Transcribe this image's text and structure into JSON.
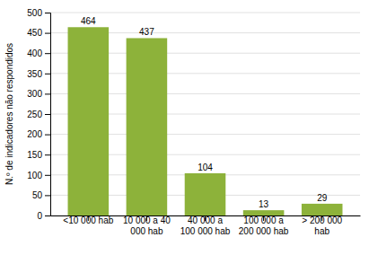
{
  "chart_data": {
    "type": "bar",
    "categories": [
      "<10 000 hab",
      "10 000 a 40\n000 hab",
      "40 000 a\n100 000 hab",
      "100 000 a\n200 000 hab",
      "> 200 000\nhab"
    ],
    "values": [
      464,
      437,
      104,
      13,
      29
    ],
    "color": "#8db23a",
    "ylabel": "N.º de indicadores não respondidos",
    "ylim": [
      0,
      500
    ],
    "yticks": [
      0,
      50,
      100,
      150,
      200,
      250,
      300,
      350,
      400,
      450,
      500
    ],
    "grid": true,
    "data_labels": true
  }
}
